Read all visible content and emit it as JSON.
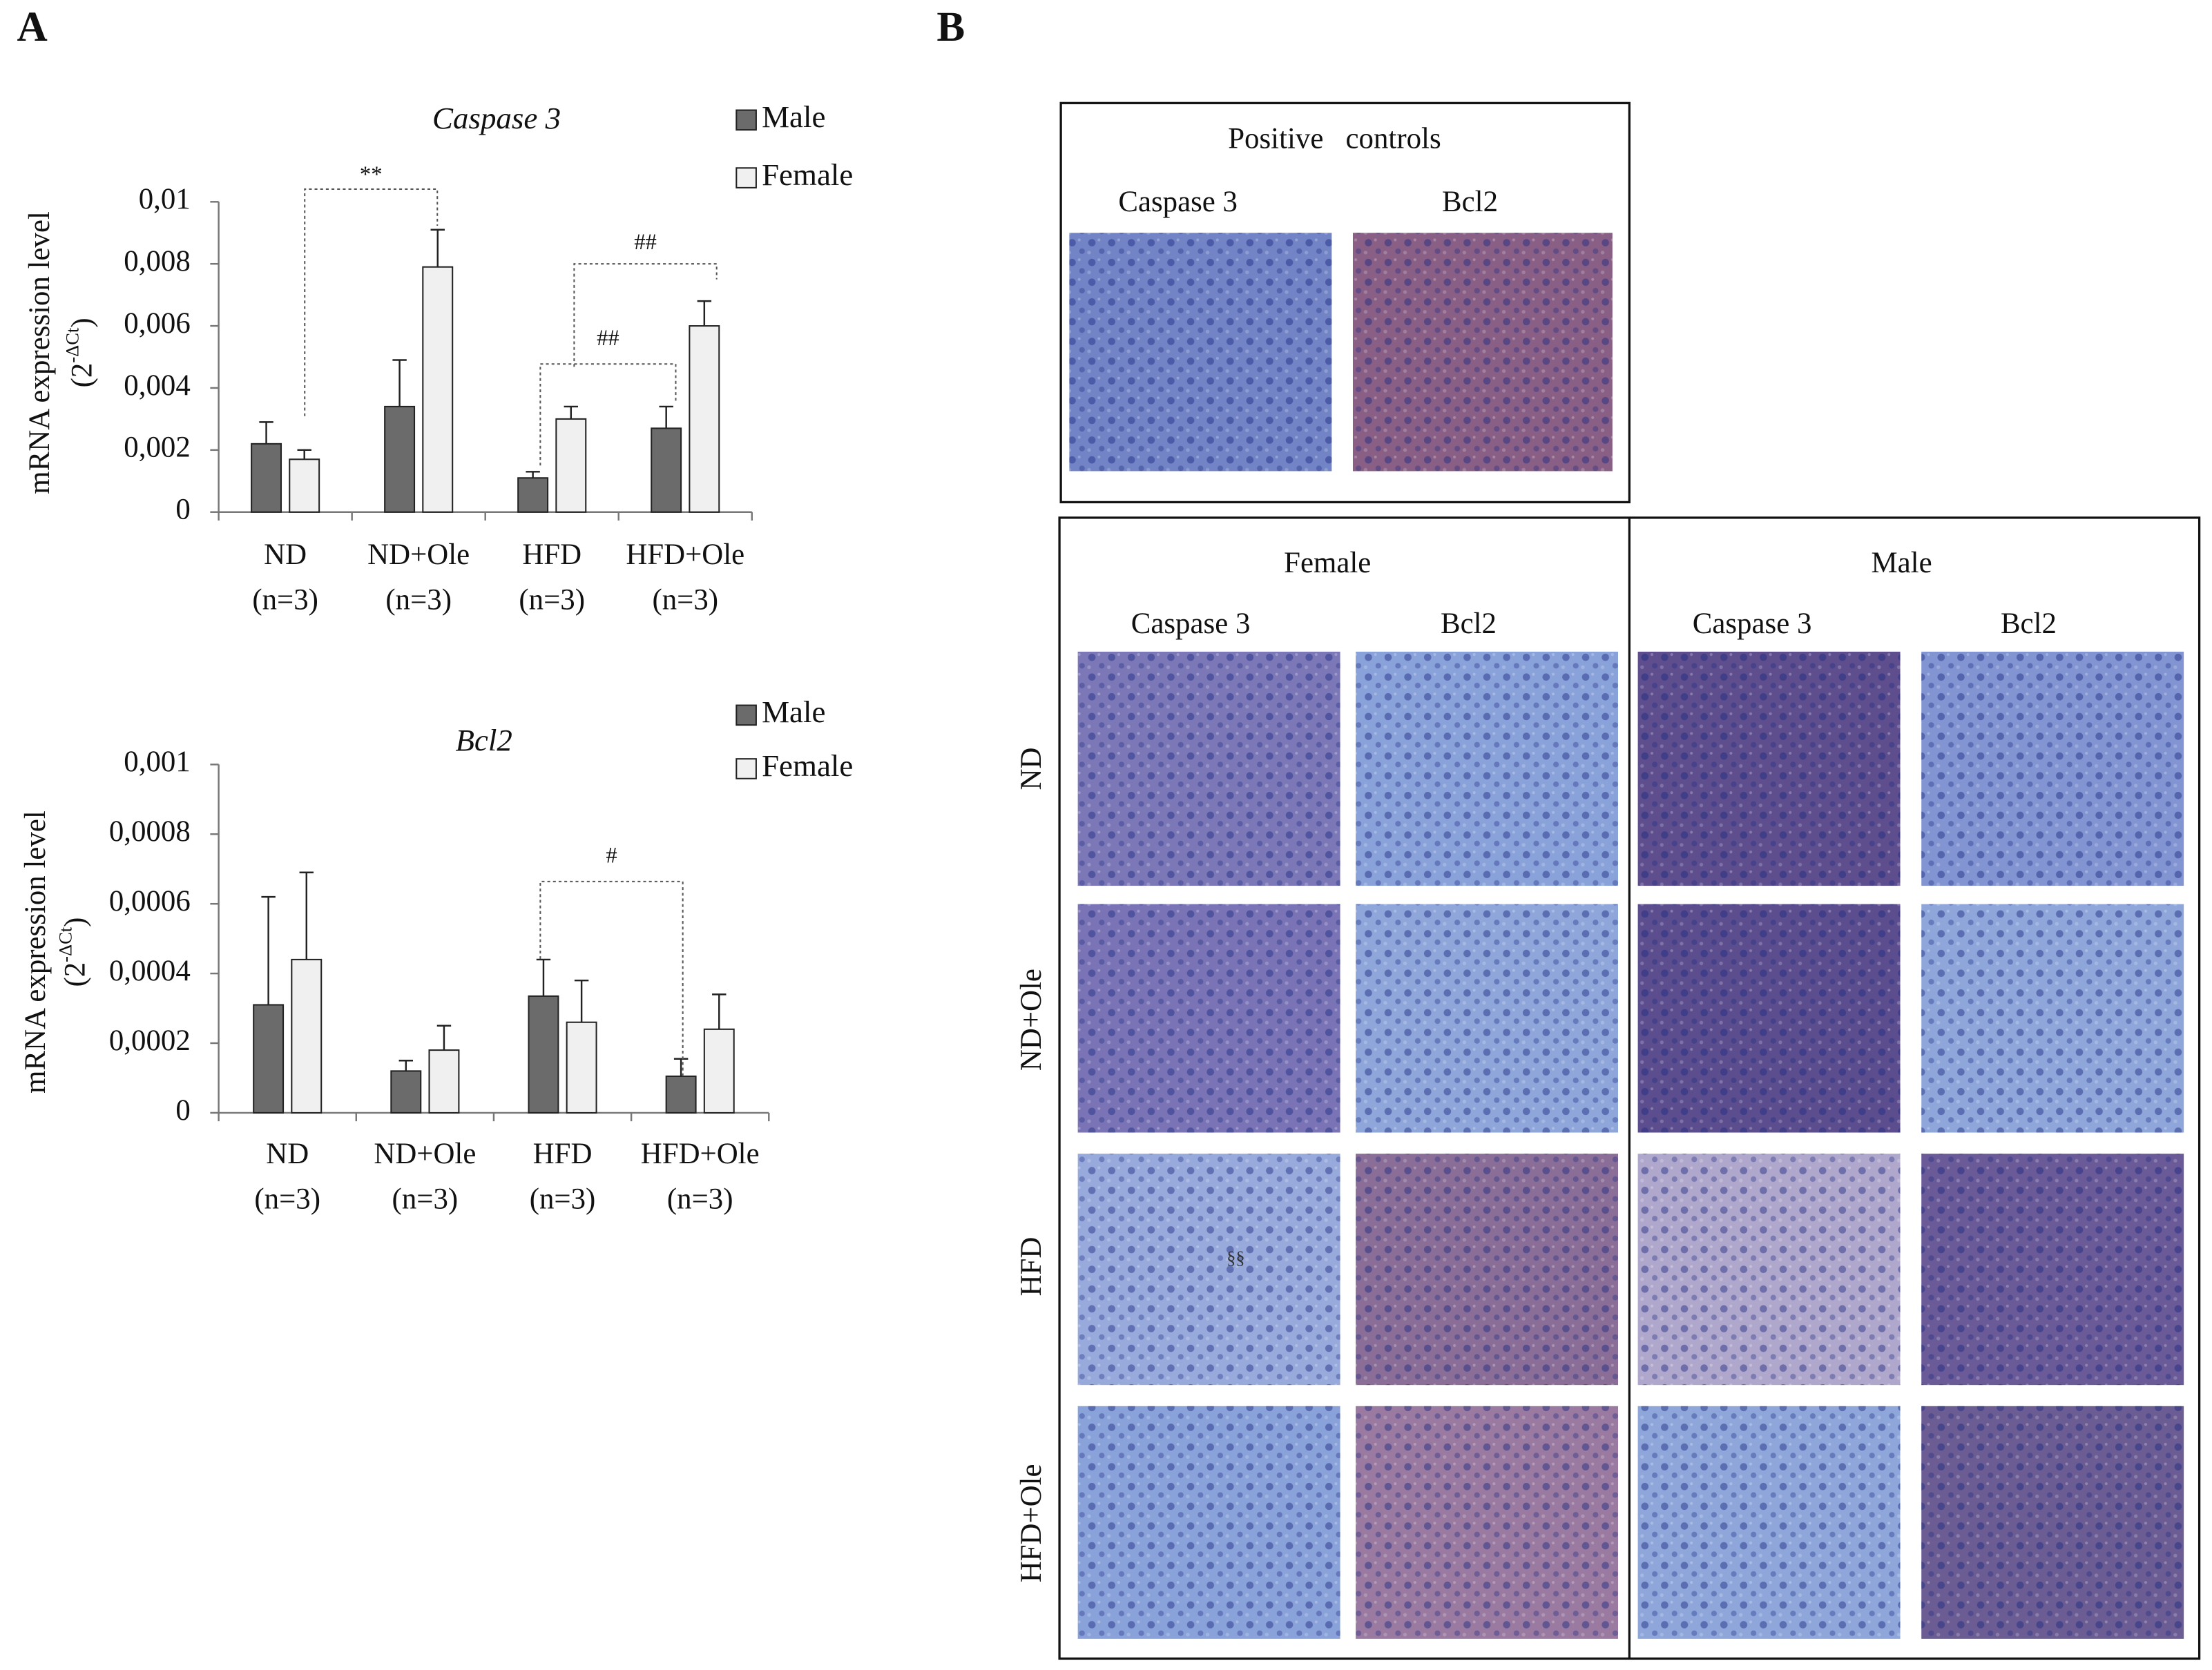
{
  "panel_labels": [
    "A",
    "B"
  ],
  "chart_data": [
    {
      "type": "bar",
      "title": "Caspase 3",
      "y_label": "mRNA expression level",
      "y_label_unit": [
        "(2",
        "-ΔCt",
        ")"
      ],
      "categories": [
        "ND",
        "ND+Ole",
        "HFD",
        "HFD+Ole"
      ],
      "category_sublabels": [
        "(n=3)",
        "(n=3)",
        "(n=3)",
        "(n=3)"
      ],
      "series": [
        {
          "name": "Male",
          "color": "#6b6b6b",
          "values": [
            0.0022,
            0.0034,
            0.0011,
            0.0027
          ],
          "errors": [
            0.0007,
            0.0015,
            0.0002,
            0.0007
          ]
        },
        {
          "name": "Female",
          "color": "#f0f0f0",
          "values": [
            0.0017,
            0.0079,
            0.003,
            0.006
          ],
          "errors": [
            0.0003,
            0.0012,
            0.0004,
            0.0008
          ]
        }
      ],
      "ylim": [
        0,
        0.01
      ],
      "yticks": [
        0,
        {
          "value": 0.002,
          "label": "0,002"
        },
        {
          "value": 0.004,
          "label": "0,004"
        },
        {
          "value": 0.006,
          "label": "0,006"
        },
        {
          "value": 0.008,
          "label": "0,008"
        },
        {
          "value": 0.01,
          "label": "0,01"
        }
      ],
      "annotations": [
        {
          "text": "**"
        },
        {
          "text": "##"
        },
        {
          "text": "##"
        }
      ]
    },
    {
      "type": "bar",
      "title": "Bcl2",
      "y_label": "mRNA expression level",
      "y_label_unit": [
        "(2",
        "-ΔCt",
        ")"
      ],
      "categories": [
        "ND",
        "ND+Ole",
        "HFD",
        "HFD+Ole"
      ],
      "category_sublabels": [
        "(n=3)",
        "(n=3)",
        "(n=3)",
        "(n=3)"
      ],
      "series": [
        {
          "name": "Male",
          "color": "#6b6b6b",
          "values": [
            0.00031,
            0.00012,
            0.000335,
            0.000105
          ],
          "errors": [
            0.00031,
            3e-05,
            0.000105,
            5e-05
          ]
        },
        {
          "name": "Female",
          "color": "#f0f0f0",
          "values": [
            0.00044,
            0.00018,
            0.00026,
            0.00024
          ],
          "errors": [
            0.00025,
            7e-05,
            0.00012,
            0.0001
          ]
        }
      ],
      "ylim": [
        0,
        0.001
      ],
      "yticks": [
        0,
        {
          "value": 0.0002,
          "label": "0,0002"
        },
        {
          "value": 0.0004,
          "label": "0,0004"
        },
        {
          "value": 0.0006,
          "label": "0,0006"
        },
        {
          "value": 0.0008,
          "label": "0,0008"
        },
        {
          "value": 0.001,
          "label": "0,001"
        }
      ],
      "annotations": [
        {
          "text": "#"
        }
      ]
    }
  ],
  "histology": {
    "positive_controls": {
      "title": "Positive   controls",
      "columns": [
        "Caspase 3",
        "Bcl2"
      ]
    },
    "groups": [
      "Female",
      "Male"
    ],
    "columns": [
      "Caspase 3",
      "Bcl2",
      "Caspase 3",
      "Bcl2"
    ],
    "rows": [
      "ND",
      "ND+Ole",
      "HFD",
      "HFD+Ole"
    ],
    "annotation": "§§"
  }
}
